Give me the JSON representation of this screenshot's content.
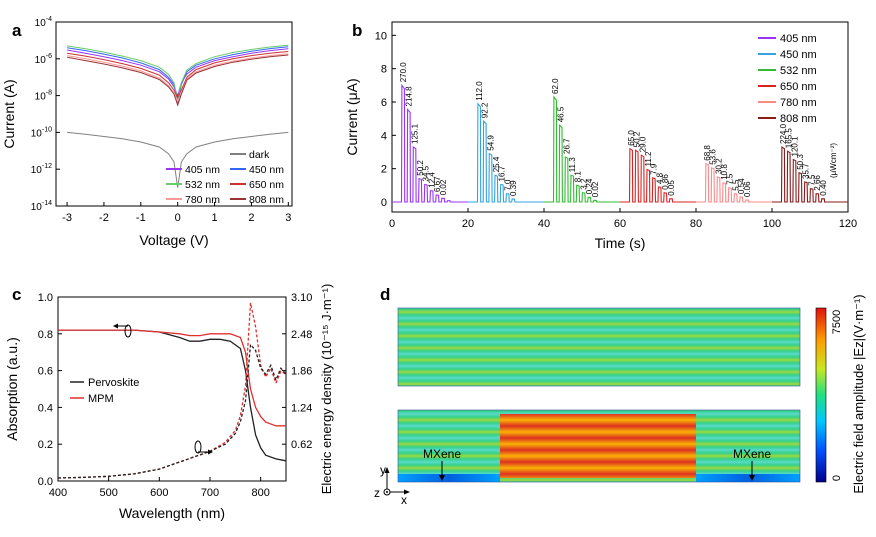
{
  "panels": {
    "a": "a",
    "b": "b",
    "c": "c",
    "d": "d"
  },
  "chart_data": [
    {
      "panel": "a",
      "type": "line",
      "xlabel": "Voltage (V)",
      "ylabel": "Current (A)",
      "xlim": [
        -3.3,
        3.1
      ],
      "ylim_log10": [
        -14,
        -4
      ],
      "y_scale": "log",
      "xticks": [
        "-3",
        "-2",
        "-1",
        "0",
        "1",
        "2",
        "3"
      ],
      "yticks": [
        "10^-14",
        "10^-12",
        "10^-10",
        "10^-8",
        "10^-6",
        "10^-4"
      ],
      "legend_position": "bottom-right",
      "x": [
        -3,
        -2.5,
        -2,
        -1.5,
        -1,
        -0.5,
        -0.25,
        -0.1,
        0,
        0.1,
        0.25,
        0.5,
        1,
        1.5,
        2,
        2.5,
        3
      ],
      "series": [
        {
          "name": "dark",
          "color": "#808080",
          "values": [
            1e-10,
            8e-11,
            6e-11,
            4.5e-11,
            3e-11,
            1.6e-11,
            7e-12,
            2.5e-12,
            1e-13,
            2.5e-12,
            7e-12,
            1.6e-11,
            3e-11,
            4.5e-11,
            6e-11,
            8e-11,
            1e-10
          ]
        },
        {
          "name": "405 nm",
          "color": "#9933ff",
          "values": [
            3e-06,
            2e-06,
            1.3e-06,
            8e-07,
            4.5e-07,
            2e-07,
            8e-08,
            3e-08,
            1e-08,
            5e-08,
            1.5e-07,
            3.5e-07,
            8e-07,
            1.3e-06,
            2e-06,
            2.8e-06,
            3.5e-06
          ]
        },
        {
          "name": "450 nm",
          "color": "#3366ff",
          "values": [
            4e-06,
            2.8e-06,
            1.8e-06,
            1.1e-06,
            6e-07,
            2.6e-07,
            1e-07,
            4e-08,
            4e-09,
            4e-08,
            2e-07,
            4.5e-07,
            1e-06,
            1.7e-06,
            2.6e-06,
            3.6e-06,
            4.5e-06
          ]
        },
        {
          "name": "532 nm",
          "color": "#66cc66",
          "values": [
            5e-06,
            3.5e-06,
            2.3e-06,
            1.4e-06,
            8e-07,
            3.5e-07,
            1.4e-07,
            5e-08,
            6e-09,
            5e-08,
            2.5e-07,
            5.5e-07,
            1.3e-06,
            2.2e-06,
            3.2e-06,
            4.4e-06,
            5.5e-06
          ]
        },
        {
          "name": "650 nm",
          "color": "#cc3333",
          "values": [
            2e-06,
            1.4e-06,
            9e-07,
            5.5e-07,
            3e-07,
            1.3e-07,
            5e-08,
            2e-08,
            8e-09,
            2e-08,
            1e-07,
            2.6e-07,
            6e-07,
            1e-06,
            1.5e-06,
            2e-06,
            2.5e-06
          ]
        },
        {
          "name": "780 nm",
          "color": "#ff9999",
          "values": [
            1.5e-06,
            1e-06,
            6.5e-07,
            4e-07,
            2.2e-07,
            9e-08,
            3.5e-08,
            1.4e-08,
            5e-09,
            1.4e-08,
            8e-08,
            2e-07,
            4.5e-07,
            7.5e-07,
            1.1e-06,
            1.5e-06,
            1.9e-06
          ]
        },
        {
          "name": "808 nm",
          "color": "#993333",
          "values": [
            1.2e-06,
            8e-07,
            5.2e-07,
            3.2e-07,
            1.8e-07,
            7.5e-08,
            3e-08,
            1.2e-08,
            3e-09,
            1.2e-08,
            7e-08,
            1.7e-07,
            3.8e-07,
            6.5e-07,
            9.5e-07,
            1.3e-06,
            1.6e-06
          ]
        }
      ]
    },
    {
      "panel": "b",
      "type": "line",
      "xlabel": "Time (s)",
      "ylabel": "Current (μA)",
      "xlim": [
        0,
        120
      ],
      "ylim": [
        -0.6,
        10.8
      ],
      "xticks": [
        "0",
        "20",
        "40",
        "60",
        "80",
        "100",
        "120"
      ],
      "yticks": [
        "0",
        "2",
        "4",
        "6",
        "8",
        "10"
      ],
      "legend_position": "top-right",
      "intensity_unit": "(μWcm⁻²)",
      "series": [
        {
          "name": "405 nm",
          "color": "#9933ff",
          "start": 2.5,
          "pulse_width": 0.75,
          "period": 1.5,
          "peaks": [
            7.0,
            5.55,
            3.3,
            1.4,
            1.05,
            0.68,
            0.42,
            0.22,
            0.08
          ],
          "labels": [
            "270.0",
            "214.8",
            "125.1",
            "50.2",
            "34.5",
            "12.4",
            "6.67",
            "0.02",
            ""
          ]
        },
        {
          "name": "450 nm",
          "color": "#33a3e0",
          "start": 22.5,
          "pulse_width": 0.75,
          "period": 1.5,
          "peaks": [
            5.9,
            4.85,
            2.9,
            1.6,
            1.05,
            0.5,
            0.18
          ],
          "labels": [
            "112.0",
            "92.2",
            "54.9",
            "25.4",
            "16.7",
            "7.0",
            "0.39"
          ]
        },
        {
          "name": "532 nm",
          "color": "#33bb33",
          "start": 42.5,
          "pulse_width": 0.75,
          "period": 1.5,
          "peaks": [
            6.3,
            4.6,
            2.7,
            1.6,
            1.0,
            0.55,
            0.28,
            0.1
          ],
          "labels": [
            "62.0",
            "46.5",
            "26.7",
            "11.3",
            "8.1",
            "3.2",
            "0.24",
            "0.02"
          ]
        },
        {
          "name": "650 nm",
          "color": "#dd2222",
          "start": 62.5,
          "pulse_width": 0.75,
          "period": 1.5,
          "peaks": [
            3.2,
            3.1,
            2.8,
            1.95,
            1.45,
            0.9,
            0.55,
            0.2
          ],
          "labels": [
            "65.0",
            "50.2",
            "29.0",
            "11.2",
            "7.9",
            "4.8",
            "0.86",
            "0.05"
          ]
        },
        {
          "name": "780 nm",
          "color": "#ff8888",
          "start": 82.5,
          "pulse_width": 0.75,
          "period": 1.5,
          "peaks": [
            2.3,
            2.05,
            1.5,
            1.15,
            0.85,
            0.5,
            0.3,
            0.12
          ],
          "labels": [
            "68.8",
            "53.6",
            "30.2",
            "10.8",
            "7.5",
            "5.5",
            "0.54",
            "0.06"
          ]
        },
        {
          "name": "808 nm",
          "color": "#8b1a1a",
          "start": 102.5,
          "pulse_width": 0.75,
          "period": 1.5,
          "peaks": [
            3.3,
            3.05,
            2.55,
            1.75,
            1.2,
            0.8,
            0.5,
            0.2
          ],
          "labels": [
            "224.0",
            "165.5",
            "120.1",
            "50.3",
            "35.7",
            "7.5",
            "2.66",
            "0.40"
          ]
        }
      ]
    },
    {
      "panel": "c",
      "type": "line",
      "xlabel": "Wavelength (nm)",
      "ylabel": "Absorption (a.u.)",
      "ylabel_right": "Electric energy density (10⁻¹⁵ J·m⁻¹)",
      "xlim": [
        400,
        850
      ],
      "ylim": [
        0,
        1.0
      ],
      "ylim_right": [
        0,
        3.1
      ],
      "xticks": [
        "400",
        "500",
        "600",
        "700",
        "800"
      ],
      "yticks": [
        "0.0",
        "0.2",
        "0.4",
        "0.6",
        "0.8",
        "1.0"
      ],
      "yticks_right": [
        "0.62",
        "1.24",
        "1.86",
        "2.48",
        "3.10"
      ],
      "legend_position": "middle-left",
      "series": [
        {
          "name": "Pervoskite",
          "color": "#222222",
          "axis": "left",
          "style": "solid",
          "x": [
            400,
            450,
            500,
            550,
            600,
            640,
            660,
            680,
            700,
            720,
            740,
            760,
            770,
            780,
            790,
            800,
            810,
            830,
            850
          ],
          "y": [
            0.82,
            0.82,
            0.82,
            0.82,
            0.81,
            0.78,
            0.76,
            0.76,
            0.77,
            0.77,
            0.76,
            0.72,
            0.6,
            0.4,
            0.25,
            0.18,
            0.14,
            0.12,
            0.11
          ]
        },
        {
          "name": "MPM",
          "color": "#e03030",
          "axis": "left",
          "style": "solid",
          "x": [
            400,
            450,
            500,
            550,
            600,
            640,
            660,
            680,
            700,
            720,
            740,
            760,
            770,
            780,
            790,
            800,
            810,
            830,
            850
          ],
          "y": [
            0.82,
            0.82,
            0.82,
            0.82,
            0.81,
            0.8,
            0.79,
            0.79,
            0.8,
            0.8,
            0.8,
            0.78,
            0.7,
            0.5,
            0.4,
            0.35,
            0.32,
            0.3,
            0.3
          ]
        },
        {
          "name": "",
          "color": "#e03030",
          "axis": "right",
          "style": "dashed",
          "x": [
            400,
            450,
            500,
            550,
            600,
            650,
            700,
            730,
            750,
            760,
            770,
            780,
            790,
            800,
            810,
            820,
            830,
            840,
            850
          ],
          "y": [
            0.05,
            0.06,
            0.08,
            0.12,
            0.2,
            0.35,
            0.5,
            0.65,
            0.85,
            1.1,
            1.6,
            3.0,
            2.6,
            1.95,
            1.75,
            1.9,
            1.65,
            1.85,
            1.8
          ]
        },
        {
          "name": "",
          "color": "#222222",
          "axis": "right",
          "style": "dashed",
          "x": [
            400,
            450,
            500,
            550,
            600,
            650,
            700,
            730,
            750,
            760,
            770,
            780,
            790,
            800,
            810,
            820,
            830,
            840,
            850
          ],
          "y": [
            0.05,
            0.06,
            0.08,
            0.12,
            0.2,
            0.35,
            0.5,
            0.62,
            0.8,
            1.0,
            1.35,
            2.3,
            2.2,
            1.9,
            1.8,
            1.95,
            1.7,
            1.9,
            1.8
          ]
        }
      ]
    },
    {
      "panel": "d",
      "type": "heatmap",
      "colorbar_label": "Electric field amplitude |Ez|(V·m⁻¹)",
      "colorbar_ticks": [
        "0",
        "7500"
      ],
      "annotations": [
        "MXene",
        "MXene"
      ],
      "axis_labels": [
        "y",
        "z",
        "x"
      ],
      "colormap": [
        "#00008b",
        "#0050ff",
        "#00c8ff",
        "#20e080",
        "#c8e820",
        "#ff9a00",
        "#e01010"
      ]
    }
  ]
}
